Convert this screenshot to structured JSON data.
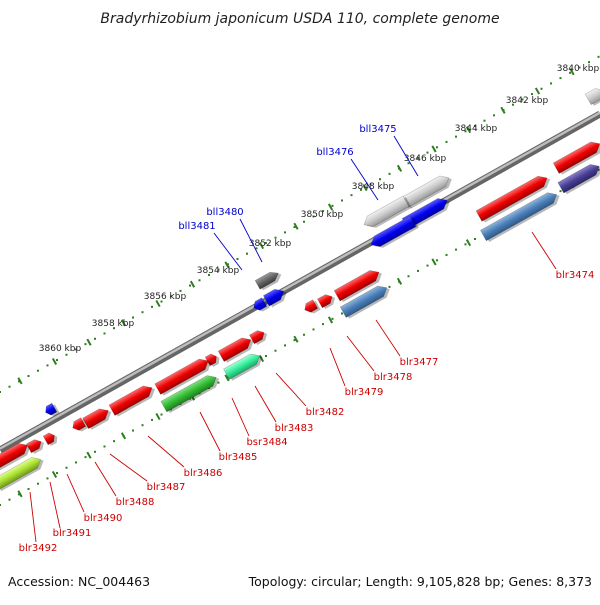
{
  "title": "Bradyrhizobium japonicum USDA 110, complete genome",
  "footer": {
    "accession": "Accession: NC_004463",
    "stats": "Topology: circular; Length: 9,105,828 bp; Genes: 8,373"
  },
  "colors": {
    "backbone": "#8a8a8a",
    "dotted_axis": "#2e7d1e",
    "top_label": "#0000cc",
    "bottom_label": "#cc0000"
  },
  "kbp_labels": [
    "3840 kbp",
    "3842 kbp",
    "3844 kbp",
    "3846 kbp",
    "3848 kbp",
    "3850 kbp",
    "3852 kbp",
    "3854 kbp",
    "3856 kbp",
    "3858 kbp",
    "3860 kbp"
  ],
  "top_gene_labels": [
    "bll3475",
    "bll3476",
    "bll3480",
    "bll3481"
  ],
  "bottom_gene_labels": [
    "blr3474",
    "blr3477",
    "blr3478",
    "blr3479",
    "blr3482",
    "blr3483",
    "bsr3484",
    "blr3485",
    "blr3486",
    "blr3487",
    "blr3488",
    "blr3490",
    "blr3491",
    "blr3492"
  ]
}
